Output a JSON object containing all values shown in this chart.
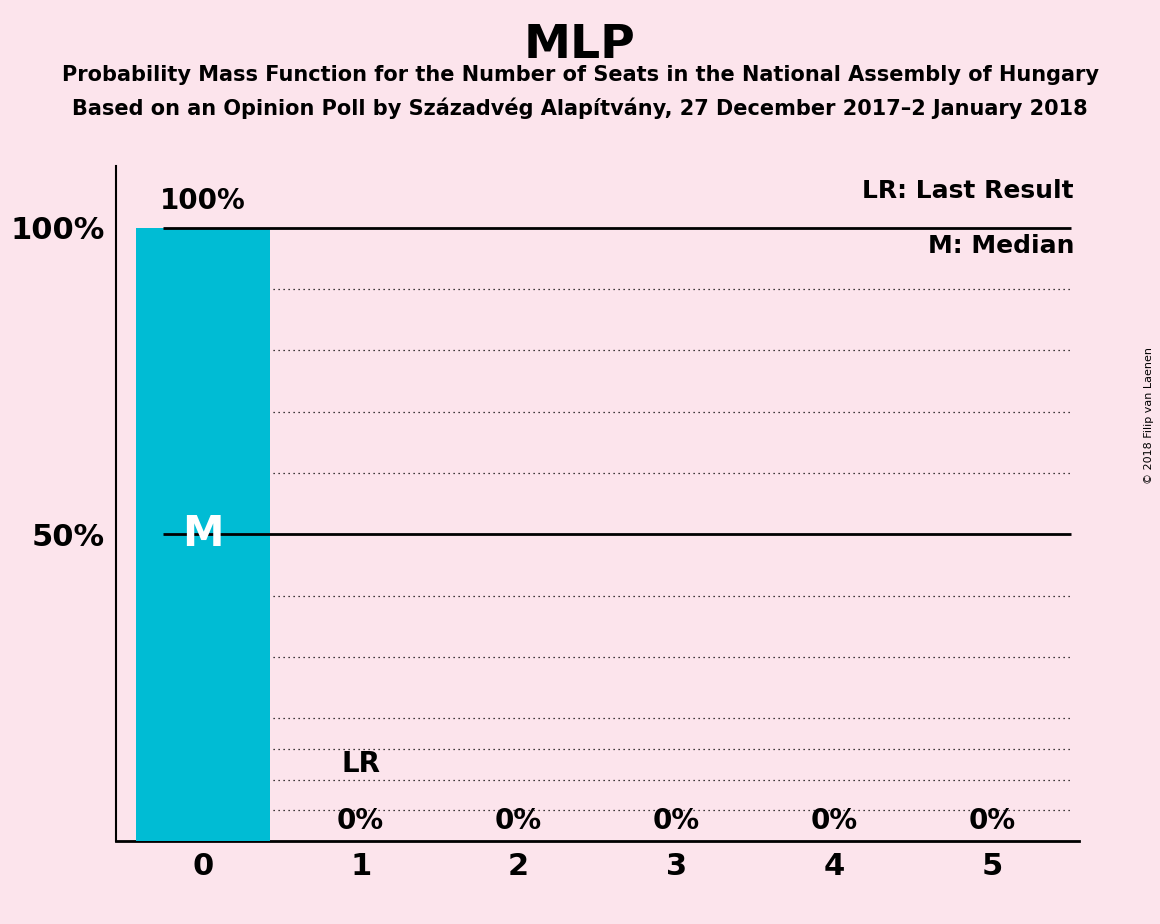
{
  "title": "MLP",
  "subtitle1": "Probability Mass Function for the Number of Seats in the National Assembly of Hungary",
  "subtitle2": "Based on an Opinion Poll by Századvég Alapítvány, 27 December 2017–2 January 2018",
  "copyright": "© 2018 Filip van Laenen",
  "background_color": "#fce4ec",
  "bar_color": "#00bcd4",
  "categories": [
    0,
    1,
    2,
    3,
    4,
    5
  ],
  "values": [
    100,
    0,
    0,
    0,
    0,
    0
  ],
  "bar_labels": [
    "100%",
    "0%",
    "0%",
    "0%",
    "0%",
    "0%"
  ],
  "median_label": "M",
  "lr_label": "LR",
  "legend_lr": "LR: Last Result",
  "legend_m": "M: Median",
  "ylim": [
    0,
    110
  ]
}
